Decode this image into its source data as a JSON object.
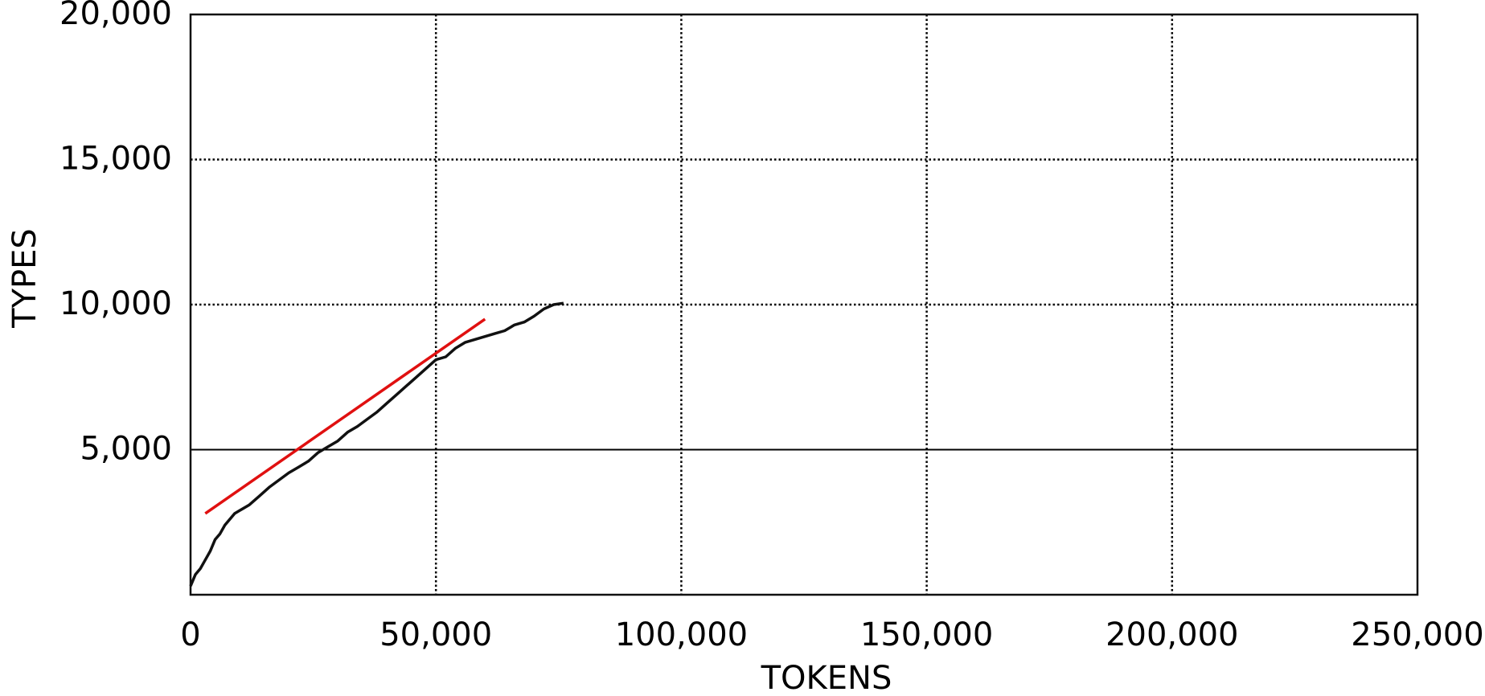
{
  "chart_data": {
    "type": "line",
    "title": "",
    "xlabel": "TOKENS",
    "ylabel": "TYPES",
    "xlim": [
      0,
      250000
    ],
    "ylim": [
      0,
      20000
    ],
    "x_ticks": [
      0,
      50000,
      100000,
      150000,
      200000,
      250000
    ],
    "x_tick_labels": [
      "0",
      "50,000",
      "100,000",
      "150,000",
      "200,000",
      "250,000"
    ],
    "y_ticks": [
      5000,
      10000,
      15000,
      20000
    ],
    "y_tick_labels": [
      "5,000",
      "10,000",
      "15,000",
      "20,000"
    ],
    "grid": true,
    "colors": {
      "growth_curve": "#111111",
      "trend_line": "#e01010",
      "grid": "#000000"
    },
    "series": [
      {
        "kind": "curve",
        "x": [
          0,
          1000,
          2000,
          3000,
          4000,
          5000,
          6000,
          7000,
          8000,
          9000,
          10000,
          12000,
          14000,
          16000,
          18000,
          20000,
          22000,
          24000,
          26000,
          28000,
          30000,
          32000,
          34000,
          36000,
          38000,
          40000,
          42000,
          44000,
          46000,
          48000,
          50000,
          52000,
          54000,
          56000,
          58000,
          60000,
          62000,
          64000,
          66000,
          68000,
          70000,
          72000,
          74000,
          76000
        ],
        "y": [
          300,
          700,
          900,
          1200,
          1500,
          1900,
          2100,
          2400,
          2600,
          2800,
          2900,
          3100,
          3400,
          3700,
          3950,
          4200,
          4400,
          4600,
          4900,
          5100,
          5300,
          5600,
          5800,
          6050,
          6300,
          6600,
          6900,
          7200,
          7500,
          7800,
          8100,
          8200,
          8500,
          8700,
          8800,
          8900,
          9000,
          9100,
          9300,
          9400,
          9600,
          9850,
          10000,
          10050
        ]
      },
      {
        "kind": "straight line",
        "x": [
          3000,
          60000
        ],
        "y": [
          2800,
          9500
        ]
      }
    ]
  }
}
